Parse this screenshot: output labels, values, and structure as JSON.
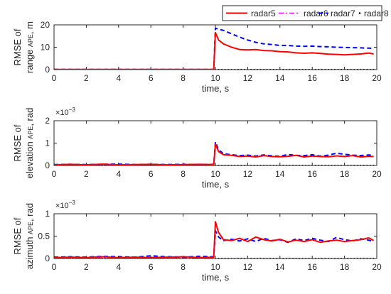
{
  "legend": {
    "placement": "top",
    "entries": [
      {
        "label": "radar5",
        "color": "#ff0000",
        "style": "solid"
      },
      {
        "label": "radar6",
        "color": "#ff00ff",
        "style": "dashdot"
      },
      {
        "label": "radar7",
        "color": "#0000ff",
        "style": "dashed"
      },
      {
        "label": "radar8",
        "color": "#000000",
        "style": "dots"
      }
    ]
  },
  "chart_data": [
    {
      "type": "line",
      "xlabel": "time, s",
      "ylabel_line1": "RMSE of",
      "ylabel_line2_prefix": "range",
      "ylabel_line2_sub": "APE",
      "ylabel_line2_unit": ",   m",
      "multiplier_base": "",
      "multiplier_exp": "",
      "xlim": [
        0,
        20
      ],
      "ylim": [
        0,
        20
      ],
      "xticks": [
        "0",
        "2",
        "4",
        "6",
        "8",
        "10",
        "12",
        "14",
        "16",
        "18",
        "20"
      ],
      "yticks": [
        "0",
        "10",
        "20"
      ],
      "ytick_values": [
        0,
        10,
        20
      ],
      "grid": false,
      "series": [
        {
          "name": "radar5",
          "x": [
            0,
            9.9,
            10,
            10.2,
            10.5,
            11,
            11.5,
            12,
            12.5,
            13,
            13.5,
            14,
            14.5,
            15,
            15.5,
            16,
            16.5,
            17,
            17.5,
            18,
            18.5,
            19,
            19.5,
            19.8
          ],
          "y": [
            0.1,
            0.1,
            16.5,
            13.2,
            11.5,
            10.0,
            9.0,
            8.8,
            9.0,
            8.5,
            8.4,
            8.0,
            7.9,
            7.5,
            7.3,
            7.5,
            7.2,
            6.9,
            6.8,
            6.6,
            6.8,
            7.0,
            7.4,
            7.0
          ]
        },
        {
          "name": "radar6",
          "x": [
            0,
            9.9
          ],
          "y": [
            0.1,
            0.1
          ]
        },
        {
          "name": "radar7",
          "x": [
            0,
            9.9,
            10,
            10.5,
            11,
            11.5,
            12,
            12.5,
            13,
            13.5,
            14,
            14.5,
            15,
            15.5,
            16,
            16.5,
            17,
            17.5,
            18,
            18.5,
            19,
            19.5,
            19.8
          ],
          "y": [
            0.1,
            0.1,
            18.5,
            17.5,
            16.0,
            14.5,
            13.2,
            12.2,
            11.5,
            11.2,
            10.8,
            10.8,
            10.5,
            10.4,
            10.5,
            10.3,
            10.2,
            10.0,
            9.9,
            9.8,
            9.7,
            9.6,
            9.5
          ]
        },
        {
          "name": "radar8",
          "x": [
            0,
            19.8
          ],
          "y": [
            0,
            0
          ]
        }
      ]
    },
    {
      "type": "line",
      "xlabel": "time, s",
      "ylabel_line1": "RMSE of",
      "ylabel_line2_prefix": "elevation",
      "ylabel_line2_sub": "APE",
      "ylabel_line2_unit": ",   rad",
      "multiplier_base": "×10",
      "multiplier_exp": "−3",
      "xlim": [
        0,
        20
      ],
      "ylim": [
        0,
        2
      ],
      "xticks": [
        "0",
        "2",
        "4",
        "6",
        "8",
        "10",
        "12",
        "14",
        "16",
        "18",
        "20"
      ],
      "yticks": [
        "0",
        "1",
        "2"
      ],
      "ytick_values": [
        0,
        1,
        2
      ],
      "grid": false,
      "series": [
        {
          "name": "radar5",
          "x": [
            0,
            1,
            2,
            3,
            4,
            5,
            6,
            7,
            8,
            9,
            9.9,
            10,
            10.2,
            10.5,
            11,
            11.5,
            12,
            12.5,
            13,
            13.5,
            14,
            14.5,
            15,
            15.5,
            16,
            16.5,
            17,
            17.5,
            18,
            18.5,
            19,
            19.5,
            19.8
          ],
          "y": [
            0.03,
            0.05,
            0.03,
            0.06,
            0.03,
            0.04,
            0.05,
            0.03,
            0.04,
            0.05,
            0.04,
            0.95,
            0.62,
            0.48,
            0.45,
            0.4,
            0.42,
            0.38,
            0.44,
            0.4,
            0.39,
            0.41,
            0.45,
            0.38,
            0.42,
            0.4,
            0.39,
            0.43,
            0.4,
            0.44,
            0.38,
            0.41,
            0.4
          ]
        },
        {
          "name": "radar6",
          "x": [
            0,
            9.9
          ],
          "y": [
            0.04,
            0.04
          ]
        },
        {
          "name": "radar7",
          "x": [
            0,
            1,
            2,
            3,
            4,
            5,
            6,
            7,
            8,
            9,
            9.9,
            10,
            10.2,
            10.5,
            11,
            11.5,
            12,
            12.5,
            13,
            13.5,
            14,
            14.5,
            15,
            15.5,
            16,
            16.5,
            17,
            17.5,
            18,
            18.5,
            19,
            19.5,
            19.8
          ],
          "y": [
            0.04,
            0.05,
            0.04,
            0.05,
            0.06,
            0.04,
            0.05,
            0.04,
            0.05,
            0.04,
            0.05,
            1.05,
            0.7,
            0.52,
            0.48,
            0.44,
            0.46,
            0.42,
            0.47,
            0.43,
            0.41,
            0.49,
            0.45,
            0.44,
            0.48,
            0.42,
            0.46,
            0.55,
            0.5,
            0.46,
            0.44,
            0.47,
            0.45
          ]
        },
        {
          "name": "radar8",
          "x": [
            0,
            19.8
          ],
          "y": [
            0,
            0
          ]
        }
      ]
    },
    {
      "type": "line",
      "xlabel": "time, s",
      "ylabel_line1": "RMSE of",
      "ylabel_line2_prefix": "azimuth",
      "ylabel_line2_sub": "APE",
      "ylabel_line2_unit": ",   rad",
      "multiplier_base": "×10",
      "multiplier_exp": "−3",
      "xlim": [
        0,
        20
      ],
      "ylim": [
        0,
        1
      ],
      "xticks": [
        "0",
        "2",
        "4",
        "6",
        "8",
        "10",
        "12",
        "14",
        "16",
        "18",
        "20"
      ],
      "yticks": [
        "0",
        "0.5",
        "1"
      ],
      "ytick_values": [
        0,
        0.5,
        1
      ],
      "grid": false,
      "series": [
        {
          "name": "radar5",
          "x": [
            0,
            1,
            2,
            3,
            4,
            5,
            6,
            7,
            8,
            9,
            9.9,
            10,
            10.2,
            10.5,
            11,
            11.5,
            12,
            12.5,
            13,
            13.5,
            14,
            14.5,
            15,
            15.5,
            16,
            16.5,
            17,
            17.5,
            18,
            18.5,
            19,
            19.5,
            19.8
          ],
          "y": [
            0.02,
            0.03,
            0.02,
            0.04,
            0.02,
            0.03,
            0.02,
            0.03,
            0.04,
            0.02,
            0.03,
            0.82,
            0.58,
            0.42,
            0.4,
            0.45,
            0.38,
            0.48,
            0.42,
            0.39,
            0.43,
            0.37,
            0.41,
            0.38,
            0.42,
            0.36,
            0.39,
            0.41,
            0.38,
            0.4,
            0.42,
            0.46,
            0.4
          ]
        },
        {
          "name": "radar6",
          "x": [
            0,
            9.9
          ],
          "y": [
            0.02,
            0.02
          ]
        },
        {
          "name": "radar7",
          "x": [
            0,
            1,
            2,
            3,
            4,
            5,
            6,
            7,
            8,
            9,
            9.9,
            10,
            10.2,
            10.5,
            11,
            11.5,
            12,
            12.5,
            13,
            13.5,
            14,
            14.5,
            15,
            15.5,
            16,
            16.5,
            17,
            17.5,
            18,
            18.5,
            19,
            19.5,
            19.8
          ],
          "y": [
            0.03,
            0.04,
            0.03,
            0.05,
            0.04,
            0.03,
            0.06,
            0.04,
            0.03,
            0.05,
            0.04,
            0.62,
            0.48,
            0.4,
            0.43,
            0.39,
            0.44,
            0.38,
            0.45,
            0.4,
            0.42,
            0.36,
            0.44,
            0.4,
            0.45,
            0.41,
            0.38,
            0.47,
            0.42,
            0.39,
            0.44,
            0.41,
            0.38
          ]
        },
        {
          "name": "radar8",
          "x": [
            0,
            19.8
          ],
          "y": [
            0,
            0
          ]
        }
      ]
    }
  ]
}
